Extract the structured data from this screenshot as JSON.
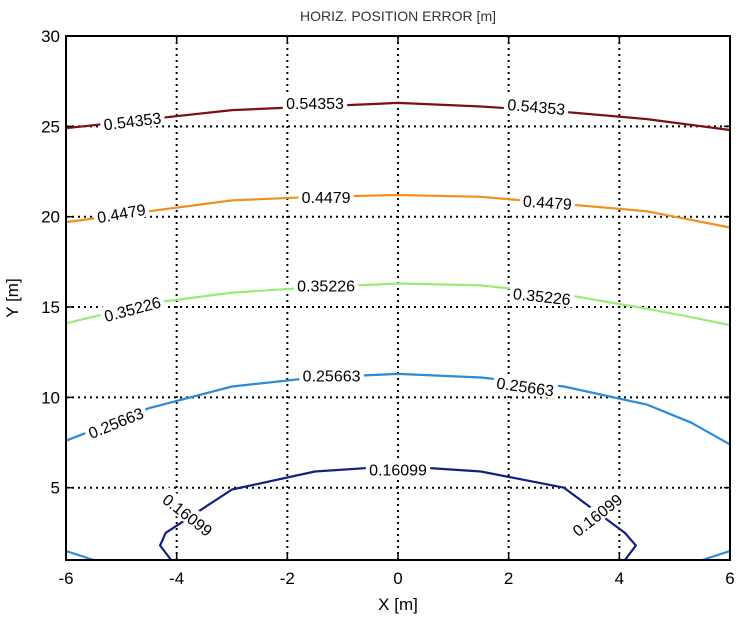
{
  "chart_data": {
    "type": "contour",
    "title": "HORIZ. POSITION ERROR [m]",
    "xlabel": "X [m]",
    "ylabel": "Y [m]",
    "xlim": [
      -6,
      6
    ],
    "ylim": [
      1,
      30
    ],
    "xticks": [
      "-6",
      "-4",
      "-2",
      "0",
      "2",
      "4",
      "6"
    ],
    "yticks": [
      "5",
      "10",
      "15",
      "20",
      "25",
      "30"
    ],
    "grid": true,
    "series": [
      {
        "name": "0.54353",
        "color": "#7a1010",
        "points": [
          [
            -6,
            24.9
          ],
          [
            -3,
            25.9
          ],
          [
            -1.5,
            26.1
          ],
          [
            0,
            26.3
          ],
          [
            1.5,
            26.1
          ],
          [
            3,
            25.8
          ],
          [
            4.5,
            25.4
          ],
          [
            6,
            24.8
          ]
        ],
        "labels": [
          [
            -4.8,
            25.3,
            7
          ],
          [
            "-1.5",
            26.3,
            0
          ],
          [
            2.5,
            26.1,
            -5
          ]
        ]
      },
      {
        "name": "0.4479",
        "color": "#f0901f",
        "points": [
          [
            -6,
            19.7
          ],
          [
            -3,
            20.9
          ],
          [
            -1.5,
            21.1
          ],
          [
            0,
            21.2
          ],
          [
            1.5,
            21.1
          ],
          [
            3,
            20.7
          ],
          [
            4.5,
            20.3
          ],
          [
            5,
            20.0
          ],
          [
            6,
            19.4
          ]
        ],
        "labels": [
          [
            -5.0,
            20.2,
            10
          ],
          [
            "-1.3",
            21.1,
            0
          ],
          [
            2.7,
            20.8,
            -4
          ]
        ]
      },
      {
        "name": "0.35226",
        "color": "#98ec78",
        "points": [
          [
            -6,
            14.1
          ],
          [
            -4.5,
            15.2
          ],
          [
            -3,
            15.8
          ],
          [
            -1.5,
            16.1
          ],
          [
            0,
            16.3
          ],
          [
            1.5,
            16.2
          ],
          [
            3,
            15.7
          ],
          [
            4.5,
            14.9
          ],
          [
            5.2,
            14.5
          ],
          [
            6,
            14.0
          ]
        ],
        "labels": [
          [
            -4.8,
            14.9,
            15
          ],
          [
            "-1.3",
            16.2,
            0
          ],
          [
            2.6,
            15.6,
            -6
          ]
        ]
      },
      {
        "name": "0.25663",
        "color": "#2a8bd6",
        "points": [
          [
            -6,
            7.6
          ],
          [
            -4.5,
            9.4
          ],
          [
            -3,
            10.6
          ],
          [
            -1.5,
            11.1
          ],
          [
            0,
            11.3
          ],
          [
            1.5,
            11.1
          ],
          [
            3,
            10.6
          ],
          [
            4.5,
            9.6
          ],
          [
            5.3,
            8.6
          ],
          [
            6,
            7.4
          ]
        ],
        "labels": [
          [
            -5.1,
            8.6,
            22
          ],
          [
            "-1.2",
            11.2,
            0
          ],
          [
            2.3,
            10.6,
            -8
          ]
        ]
      },
      {
        "name": "0.16099",
        "color": "#13207f",
        "points": [
          [
            -4.1,
            1.0
          ],
          [
            -4.3,
            1.8
          ],
          [
            -4.2,
            2.5
          ],
          [
            -3,
            4.9
          ],
          [
            -1.5,
            5.9
          ],
          [
            0,
            6.2
          ],
          [
            1.5,
            5.9
          ],
          [
            3,
            5.0
          ],
          [
            4.1,
            2.5
          ],
          [
            4.3,
            1.8
          ],
          [
            4.1,
            1.0
          ]
        ],
        "labels": [
          [
            -3.8,
            3.5,
            -38
          ],
          [
            "0",
            6.0,
            0
          ],
          [
            3.6,
            3.5,
            38
          ]
        ]
      },
      {
        "name": "",
        "color": "#2a8bd6",
        "points": [
          [
            -6,
            1.5
          ],
          [
            -5.5,
            1.0
          ]
        ],
        "labels": []
      },
      {
        "name": "",
        "color": "#2a8bd6",
        "points": [
          [
            6,
            1.5
          ],
          [
            5.5,
            1.0
          ]
        ],
        "labels": []
      }
    ]
  }
}
